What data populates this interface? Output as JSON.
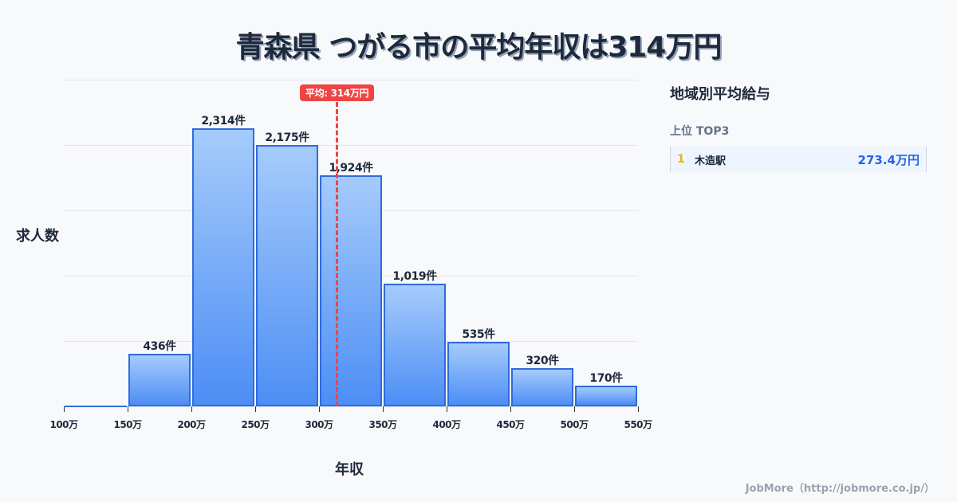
{
  "title": "青森県 つがる市の平均年収は314万円",
  "chart_data": {
    "type": "bar",
    "title": "青森県 つがる市の平均年収は314万円",
    "xlabel": "年収",
    "ylabel": "求人数",
    "categories": [
      "100-150万",
      "150-200万",
      "200-250万",
      "250-300万",
      "300-350万",
      "350-400万",
      "400-450万",
      "450-500万",
      "500-550万"
    ],
    "bin_edges": [
      100,
      150,
      200,
      250,
      300,
      350,
      400,
      450,
      500,
      550
    ],
    "x_tick_labels": [
      "100万",
      "150万",
      "200万",
      "250万",
      "300万",
      "350万",
      "400万",
      "450万",
      "500万",
      "550万"
    ],
    "values": [
      0,
      436,
      2314,
      2175,
      1924,
      1019,
      535,
      320,
      170
    ],
    "value_labels": [
      "",
      "436件",
      "2,314件",
      "2,175件",
      "1,924件",
      "1,019件",
      "535件",
      "320件",
      "170件"
    ],
    "xlim": [
      100,
      550
    ],
    "ylim": [
      0,
      2720
    ],
    "grid": true,
    "annotations": [
      {
        "type": "vline",
        "x": 314,
        "label": "平均: 314万円",
        "color": "#ef4444"
      }
    ],
    "bar_color": "#4d8ef5",
    "bar_border_color": "#2f6be0"
  },
  "average_badge": "平均: 314万円",
  "sidebar": {
    "title": "地域別平均給与",
    "subtitle": "上位 TOP3",
    "ranking": [
      {
        "rank": "1",
        "name": "木造駅",
        "value": "273.4万円"
      }
    ]
  },
  "footer": "JobMore（http://jobmore.co.jp/）"
}
